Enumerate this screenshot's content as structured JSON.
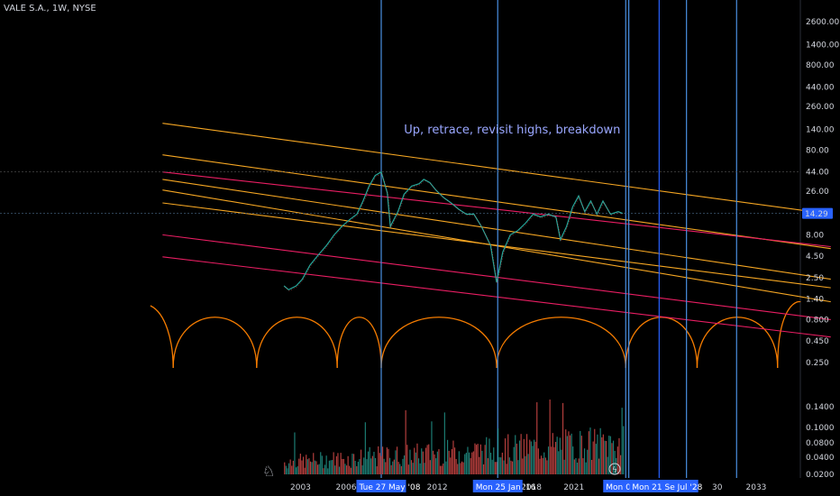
{
  "symbol": {
    "title": "VALE S.A., 1W, NYSE"
  },
  "chart_data": {
    "type": "line",
    "price_scale": "log",
    "ylim": [
      0.25,
      2600
    ],
    "y_ticks": [
      "2600.00",
      "1400.00",
      "800.00",
      "440.00",
      "260.00",
      "140.00",
      "80.00",
      "44.00",
      "26.00",
      "14.29",
      "8.00",
      "4.50",
      "2.50",
      "1.40",
      "0.800",
      "0.450",
      "0.250"
    ],
    "last_price": "14.29",
    "volume_ticks": [
      "0.1400",
      "0.1000",
      "0.0800",
      "0.0400",
      "0.0200"
    ],
    "x_ticks": [
      "2003",
      "2006",
      "2012",
      "2018",
      "2021",
      "2033"
    ],
    "vertical_date_labels": [
      "Tue 27 May '08",
      "Mon 25 Jan '16",
      "Mon 09 Oct '2",
      "Mon 21 Sep '26",
      "Jul '28"
    ],
    "annotation": "Up, retrace, revisit highs, breakdown",
    "price_path": [
      [
        2002.0,
        2.0
      ],
      [
        2002.3,
        1.8
      ],
      [
        2002.8,
        2.0
      ],
      [
        2003.2,
        2.4
      ],
      [
        2003.7,
        3.5
      ],
      [
        2004.2,
        4.5
      ],
      [
        2004.8,
        6.0
      ],
      [
        2005.3,
        8.0
      ],
      [
        2005.8,
        10.0
      ],
      [
        2006.3,
        12.0
      ],
      [
        2006.8,
        14.0
      ],
      [
        2007.2,
        20.0
      ],
      [
        2007.6,
        30.0
      ],
      [
        2008.0,
        40.0
      ],
      [
        2008.4,
        44.0
      ],
      [
        2008.8,
        25.0
      ],
      [
        2009.0,
        10.0
      ],
      [
        2009.5,
        15.0
      ],
      [
        2009.9,
        24.0
      ],
      [
        2010.4,
        30.0
      ],
      [
        2010.9,
        32.0
      ],
      [
        2011.2,
        36.0
      ],
      [
        2011.6,
        33.0
      ],
      [
        2012.0,
        27.0
      ],
      [
        2012.5,
        22.0
      ],
      [
        2013.0,
        19.0
      ],
      [
        2013.5,
        16.0
      ],
      [
        2014.0,
        14.0
      ],
      [
        2014.5,
        14.0
      ],
      [
        2015.0,
        10.0
      ],
      [
        2015.6,
        6.0
      ],
      [
        2016.0,
        2.2
      ],
      [
        2016.4,
        5.0
      ],
      [
        2016.9,
        8.0
      ],
      [
        2017.4,
        9.0
      ],
      [
        2017.9,
        11.0
      ],
      [
        2018.4,
        14.0
      ],
      [
        2018.9,
        13.0
      ],
      [
        2019.4,
        14.0
      ],
      [
        2019.9,
        13.0
      ],
      [
        2020.2,
        7.0
      ],
      [
        2020.6,
        10.0
      ],
      [
        2021.0,
        17.0
      ],
      [
        2021.4,
        23.0
      ],
      [
        2021.8,
        15.0
      ],
      [
        2022.2,
        20.0
      ],
      [
        2022.6,
        14.0
      ],
      [
        2023.0,
        20.0
      ],
      [
        2023.5,
        14.0
      ],
      [
        2024.0,
        15.0
      ],
      [
        2024.3,
        14.29
      ]
    ],
    "trend_lines": [
      {
        "color": "#f5a623",
        "start": [
          1994,
          165
        ],
        "end": [
          2038,
          14
        ]
      },
      {
        "color": "#f5a623",
        "start": [
          1994,
          70
        ],
        "end": [
          2038,
          5.5
        ]
      },
      {
        "color": "#e91e63",
        "start": [
          1994,
          44
        ],
        "end": [
          2038,
          5.8
        ]
      },
      {
        "color": "#f5a623",
        "start": [
          1994,
          36
        ],
        "end": [
          2038,
          2.4
        ]
      },
      {
        "color": "#f5a623",
        "start": [
          1994,
          27
        ],
        "end": [
          2038,
          1.3
        ]
      },
      {
        "color": "#f5a623",
        "start": [
          1994,
          19
        ],
        "end": [
          2038,
          1.9
        ]
      },
      {
        "color": "#e91e63",
        "start": [
          1994,
          8
        ],
        "end": [
          2038,
          0.8
        ]
      },
      {
        "color": "#e91e63",
        "start": [
          1994,
          4.4
        ],
        "end": [
          2038,
          0.5
        ]
      }
    ],
    "cycle_arcs": [
      1994.7,
      2000.2,
      2005.5,
      2008.4,
      2016.0,
      2024.5,
      2029.2,
      2034.5
    ],
    "vertical_lines": [
      {
        "x": 2008.4,
        "color": "#4a90e2",
        "label_index": 0
      },
      {
        "x": 2016.07,
        "color": "#4a90e2",
        "label_index": 1
      },
      {
        "x": 2024.5,
        "color": "#4a90e2",
        "label_index": 2
      },
      {
        "x": 2024.7,
        "color": "#4a90e2",
        "label_index": -1
      },
      {
        "x": 2026.7,
        "color": "#2962ff",
        "label_index": 3
      },
      {
        "x": 2028.5,
        "color": "#4a90e2",
        "label_index": 4
      },
      {
        "x": 2031.8,
        "color": "#4a90e2",
        "label_index": -1
      }
    ]
  }
}
